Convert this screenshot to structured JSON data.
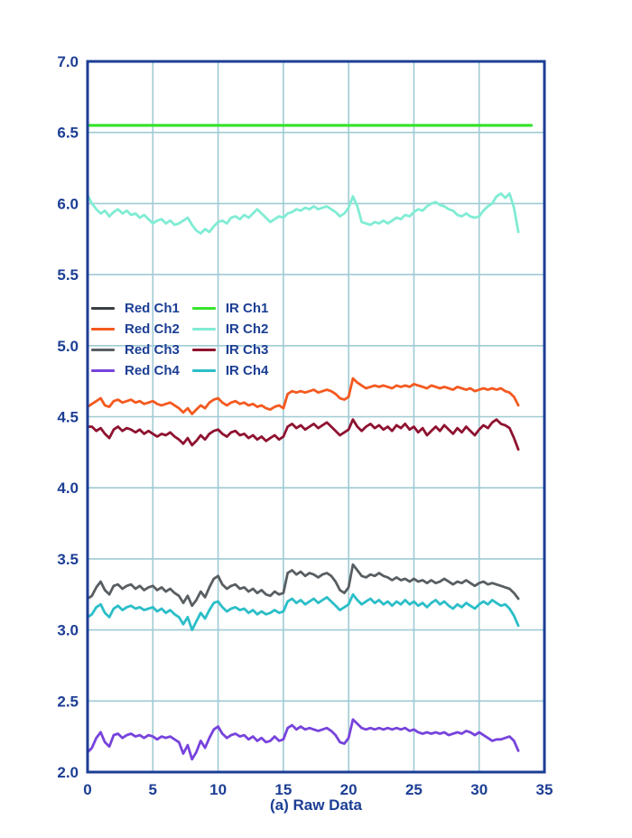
{
  "chart_data": {
    "type": "line",
    "caption": "(a) Raw Data",
    "xlabel": "",
    "ylabel": "",
    "xlim": [
      0,
      35
    ],
    "ylim": [
      2.0,
      7.0
    ],
    "xticks": [
      0,
      5,
      10,
      15,
      20,
      25,
      30,
      35
    ],
    "xtick_labels": [
      "0",
      "5",
      "10",
      "15",
      "20",
      "25",
      "30",
      "35"
    ],
    "yticks": [
      2.0,
      2.5,
      3.0,
      3.5,
      4.0,
      4.5,
      5.0,
      5.5,
      6.0,
      6.5,
      7.0
    ],
    "ytick_labels": [
      "2.0",
      "2.5",
      "3.0",
      "3.5",
      "4.0",
      "4.5",
      "5.0",
      "5.5",
      "6.0",
      "6.5",
      "7.0"
    ],
    "grid": true,
    "legend_position": "inside-left-middle",
    "colors": {
      "axis": "#1c3e94",
      "grid": "#9fcad4",
      "labels": "#1c3e94",
      "background": "#ffffff"
    },
    "legend_columns": [
      [
        "Red Ch1",
        "Red Ch2",
        "Red Ch3",
        "Red Ch4"
      ],
      [
        "IR Ch1",
        "IR Ch2",
        "IR Ch3",
        "IR Ch4"
      ]
    ],
    "x": [
      0,
      0.33,
      0.67,
      1,
      1.33,
      1.67,
      2,
      2.33,
      2.67,
      3,
      3.33,
      3.67,
      4,
      4.33,
      4.67,
      5,
      5.33,
      5.67,
      6,
      6.33,
      6.67,
      7,
      7.33,
      7.67,
      8,
      8.33,
      8.67,
      9,
      9.33,
      9.67,
      10,
      10.33,
      10.67,
      11,
      11.33,
      11.67,
      12,
      12.33,
      12.67,
      13,
      13.33,
      13.67,
      14,
      14.33,
      14.67,
      15,
      15.33,
      15.67,
      16,
      16.33,
      16.67,
      17,
      17.33,
      17.67,
      18,
      18.33,
      18.67,
      19,
      19.33,
      19.67,
      20,
      20.33,
      20.67,
      21,
      21.33,
      21.67,
      22,
      22.33,
      22.67,
      23,
      23.33,
      23.67,
      24,
      24.33,
      24.67,
      25,
      25.33,
      25.67,
      26,
      26.33,
      26.67,
      27,
      27.33,
      27.67,
      28,
      28.33,
      28.67,
      29,
      29.33,
      29.67,
      30,
      30.33,
      30.67,
      31,
      31.33,
      31.67,
      32,
      32.33,
      32.67,
      33
    ],
    "series": [
      {
        "name": "Red Ch1",
        "color": "#3a3e42",
        "width": 2.6,
        "x_override": [
          0,
          34
        ],
        "values": [
          6.55,
          6.55
        ]
      },
      {
        "name": "Red Ch2",
        "color": "#f4591f",
        "width": 2.8,
        "values": [
          4.57,
          4.59,
          4.61,
          4.63,
          4.58,
          4.57,
          4.61,
          4.62,
          4.6,
          4.61,
          4.62,
          4.6,
          4.61,
          4.59,
          4.6,
          4.61,
          4.59,
          4.58,
          4.59,
          4.6,
          4.58,
          4.56,
          4.53,
          4.56,
          4.52,
          4.55,
          4.58,
          4.56,
          4.6,
          4.62,
          4.63,
          4.6,
          4.58,
          4.6,
          4.61,
          4.59,
          4.6,
          4.58,
          4.59,
          4.57,
          4.58,
          4.56,
          4.55,
          4.57,
          4.58,
          4.56,
          4.66,
          4.68,
          4.67,
          4.68,
          4.67,
          4.68,
          4.69,
          4.67,
          4.68,
          4.69,
          4.68,
          4.66,
          4.63,
          4.62,
          4.64,
          4.77,
          4.74,
          4.72,
          4.7,
          4.71,
          4.72,
          4.71,
          4.72,
          4.71,
          4.7,
          4.72,
          4.71,
          4.72,
          4.71,
          4.73,
          4.72,
          4.71,
          4.7,
          4.72,
          4.71,
          4.7,
          4.71,
          4.7,
          4.69,
          4.71,
          4.7,
          4.69,
          4.7,
          4.68,
          4.69,
          4.7,
          4.69,
          4.7,
          4.69,
          4.7,
          4.68,
          4.67,
          4.64,
          4.58
        ]
      },
      {
        "name": "Red Ch3",
        "color": "#585e61",
        "width": 2.8,
        "values": [
          3.22,
          3.24,
          3.3,
          3.34,
          3.28,
          3.25,
          3.31,
          3.32,
          3.29,
          3.31,
          3.32,
          3.29,
          3.31,
          3.28,
          3.3,
          3.31,
          3.28,
          3.3,
          3.27,
          3.29,
          3.26,
          3.24,
          3.19,
          3.24,
          3.17,
          3.21,
          3.27,
          3.23,
          3.3,
          3.36,
          3.38,
          3.32,
          3.29,
          3.31,
          3.32,
          3.29,
          3.3,
          3.27,
          3.29,
          3.26,
          3.28,
          3.25,
          3.24,
          3.27,
          3.25,
          3.26,
          3.4,
          3.42,
          3.39,
          3.41,
          3.38,
          3.4,
          3.39,
          3.37,
          3.39,
          3.4,
          3.38,
          3.34,
          3.28,
          3.26,
          3.3,
          3.46,
          3.42,
          3.38,
          3.37,
          3.39,
          3.38,
          3.4,
          3.38,
          3.37,
          3.35,
          3.37,
          3.35,
          3.36,
          3.34,
          3.36,
          3.34,
          3.35,
          3.33,
          3.35,
          3.33,
          3.34,
          3.36,
          3.34,
          3.32,
          3.34,
          3.33,
          3.35,
          3.33,
          3.31,
          3.33,
          3.34,
          3.32,
          3.33,
          3.32,
          3.31,
          3.3,
          3.29,
          3.26,
          3.22
        ]
      },
      {
        "name": "Red Ch4",
        "color": "#7743dc",
        "width": 2.8,
        "values": [
          2.14,
          2.17,
          2.24,
          2.28,
          2.21,
          2.18,
          2.26,
          2.27,
          2.24,
          2.26,
          2.27,
          2.25,
          2.26,
          2.24,
          2.26,
          2.25,
          2.23,
          2.25,
          2.24,
          2.25,
          2.23,
          2.21,
          2.13,
          2.19,
          2.09,
          2.14,
          2.22,
          2.17,
          2.24,
          2.3,
          2.32,
          2.27,
          2.24,
          2.26,
          2.27,
          2.25,
          2.26,
          2.23,
          2.25,
          2.22,
          2.24,
          2.21,
          2.22,
          2.25,
          2.22,
          2.23,
          2.31,
          2.33,
          2.3,
          2.32,
          2.3,
          2.31,
          2.3,
          2.29,
          2.3,
          2.31,
          2.29,
          2.26,
          2.21,
          2.2,
          2.24,
          2.37,
          2.34,
          2.31,
          2.3,
          2.31,
          2.3,
          2.31,
          2.3,
          2.31,
          2.3,
          2.31,
          2.3,
          2.31,
          2.29,
          2.3,
          2.28,
          2.27,
          2.28,
          2.27,
          2.28,
          2.27,
          2.28,
          2.26,
          2.27,
          2.28,
          2.27,
          2.29,
          2.28,
          2.26,
          2.28,
          2.26,
          2.24,
          2.22,
          2.23,
          2.23,
          2.24,
          2.25,
          2.22,
          2.15
        ]
      },
      {
        "name": "IR Ch1",
        "color": "#35e42b",
        "width": 3.2,
        "x_override": [
          0,
          34
        ],
        "values": [
          6.55,
          6.55
        ]
      },
      {
        "name": "IR Ch2",
        "color": "#80ecd4",
        "width": 2.8,
        "values": [
          6.06,
          6.0,
          5.96,
          5.93,
          5.95,
          5.91,
          5.94,
          5.96,
          5.93,
          5.95,
          5.92,
          5.93,
          5.9,
          5.92,
          5.89,
          5.86,
          5.88,
          5.89,
          5.86,
          5.88,
          5.85,
          5.86,
          5.88,
          5.9,
          5.85,
          5.81,
          5.79,
          5.82,
          5.8,
          5.84,
          5.87,
          5.88,
          5.86,
          5.9,
          5.91,
          5.89,
          5.92,
          5.9,
          5.93,
          5.96,
          5.93,
          5.9,
          5.87,
          5.89,
          5.91,
          5.9,
          5.93,
          5.94,
          5.96,
          5.95,
          5.97,
          5.96,
          5.98,
          5.96,
          5.97,
          5.98,
          5.96,
          5.94,
          5.91,
          5.93,
          5.97,
          6.05,
          5.98,
          5.87,
          5.86,
          5.85,
          5.87,
          5.86,
          5.88,
          5.86,
          5.88,
          5.9,
          5.89,
          5.92,
          5.91,
          5.94,
          5.96,
          5.95,
          5.98,
          6.0,
          6.01,
          5.99,
          5.98,
          5.96,
          5.95,
          5.92,
          5.91,
          5.93,
          5.91,
          5.9,
          5.91,
          5.95,
          5.98,
          6.0,
          6.05,
          6.07,
          6.04,
          6.07,
          5.97,
          5.8
        ]
      },
      {
        "name": "IR Ch3",
        "color": "#8e1230",
        "width": 2.8,
        "values": [
          4.43,
          4.43,
          4.4,
          4.42,
          4.38,
          4.35,
          4.41,
          4.43,
          4.4,
          4.42,
          4.41,
          4.39,
          4.41,
          4.38,
          4.4,
          4.38,
          4.36,
          4.38,
          4.37,
          4.39,
          4.36,
          4.34,
          4.31,
          4.35,
          4.3,
          4.33,
          4.37,
          4.34,
          4.38,
          4.4,
          4.41,
          4.38,
          4.36,
          4.39,
          4.4,
          4.37,
          4.38,
          4.35,
          4.37,
          4.34,
          4.36,
          4.33,
          4.35,
          4.37,
          4.34,
          4.36,
          4.43,
          4.45,
          4.42,
          4.44,
          4.41,
          4.43,
          4.45,
          4.42,
          4.44,
          4.46,
          4.43,
          4.4,
          4.37,
          4.39,
          4.41,
          4.48,
          4.43,
          4.4,
          4.43,
          4.45,
          4.42,
          4.44,
          4.41,
          4.43,
          4.4,
          4.44,
          4.42,
          4.45,
          4.41,
          4.43,
          4.39,
          4.42,
          4.37,
          4.4,
          4.43,
          4.4,
          4.44,
          4.41,
          4.38,
          4.42,
          4.39,
          4.43,
          4.4,
          4.37,
          4.41,
          4.44,
          4.42,
          4.46,
          4.48,
          4.45,
          4.44,
          4.42,
          4.35,
          4.27
        ]
      },
      {
        "name": "IR Ch4",
        "color": "#2bbec8",
        "width": 2.8,
        "values": [
          3.09,
          3.11,
          3.16,
          3.18,
          3.12,
          3.09,
          3.15,
          3.17,
          3.14,
          3.16,
          3.17,
          3.15,
          3.16,
          3.14,
          3.15,
          3.16,
          3.13,
          3.15,
          3.12,
          3.14,
          3.11,
          3.09,
          3.04,
          3.09,
          3.0,
          3.06,
          3.12,
          3.08,
          3.14,
          3.19,
          3.2,
          3.16,
          3.13,
          3.15,
          3.16,
          3.14,
          3.15,
          3.12,
          3.14,
          3.11,
          3.13,
          3.11,
          3.12,
          3.14,
          3.12,
          3.13,
          3.2,
          3.22,
          3.19,
          3.21,
          3.18,
          3.2,
          3.22,
          3.19,
          3.21,
          3.23,
          3.2,
          3.17,
          3.14,
          3.16,
          3.18,
          3.25,
          3.21,
          3.18,
          3.2,
          3.22,
          3.19,
          3.21,
          3.18,
          3.2,
          3.17,
          3.2,
          3.18,
          3.21,
          3.18,
          3.2,
          3.17,
          3.19,
          3.16,
          3.19,
          3.21,
          3.18,
          3.2,
          3.17,
          3.15,
          3.18,
          3.16,
          3.19,
          3.17,
          3.15,
          3.18,
          3.2,
          3.18,
          3.21,
          3.19,
          3.17,
          3.18,
          3.15,
          3.1,
          3.03
        ]
      }
    ]
  }
}
